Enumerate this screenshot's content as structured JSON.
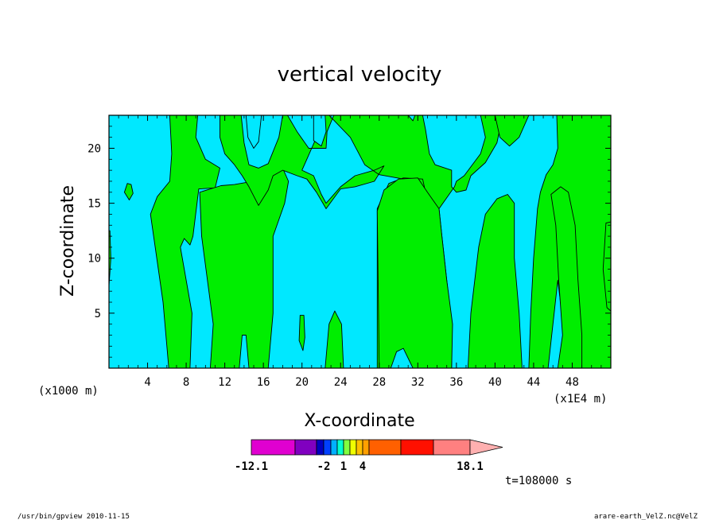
{
  "chart_data": {
    "type": "heatmap",
    "title": "vertical velocity",
    "xlabel": "X-coordinate",
    "ylabel": "Z-coordinate",
    "x_unit_left": "(x1000 m)",
    "x_unit_right": "(x1E4 m)",
    "xlim": [
      0,
      52
    ],
    "ylim": [
      0,
      23
    ],
    "xticks": [
      4,
      8,
      12,
      16,
      20,
      24,
      28,
      32,
      36,
      40,
      44,
      48
    ],
    "yticks": [
      5,
      10,
      15,
      20
    ],
    "colors": {
      "negative": "#00e8ff",
      "positive": "#00ee00",
      "contour": "#000000"
    },
    "positive_regions": [
      {
        "id": "band-a",
        "points": [
          [
            6.2,
            0
          ],
          [
            5.6,
            6
          ],
          [
            4.3,
            14
          ],
          [
            5,
            15.6
          ],
          [
            6.3,
            17
          ],
          [
            6.5,
            19.5
          ],
          [
            6.3,
            23
          ],
          [
            9.2,
            23
          ],
          [
            9,
            21
          ],
          [
            10,
            19
          ],
          [
            11.5,
            18.2
          ],
          [
            11,
            16.4
          ],
          [
            9.3,
            16.3
          ],
          [
            8.7,
            12
          ],
          [
            8.4,
            11.2
          ],
          [
            7.8,
            11.8
          ],
          [
            7.4,
            11
          ],
          [
            8.6,
            5
          ],
          [
            8.4,
            0
          ]
        ]
      },
      {
        "id": "band-b",
        "points": [
          [
            10.5,
            0
          ],
          [
            10.8,
            4
          ],
          [
            10.2,
            8
          ],
          [
            9.6,
            12
          ],
          [
            9.4,
            16
          ],
          [
            11.6,
            16.6
          ],
          [
            13,
            16.7
          ],
          [
            14.3,
            16.9
          ],
          [
            15.2,
            15.4
          ],
          [
            16.2,
            16.5
          ],
          [
            16.5,
            17.5
          ],
          [
            18,
            18.2
          ],
          [
            18.6,
            17
          ],
          [
            18.2,
            15
          ],
          [
            17,
            12
          ],
          [
            17,
            5
          ],
          [
            16.5,
            0
          ],
          [
            14.5,
            0
          ],
          [
            14.2,
            3
          ],
          [
            13.8,
            3
          ],
          [
            13.5,
            0
          ]
        ]
      },
      {
        "id": "band-c",
        "points": [
          [
            11.5,
            23
          ],
          [
            13.7,
            23
          ],
          [
            14,
            20.5
          ],
          [
            14.5,
            18.5
          ],
          [
            15.5,
            18.2
          ],
          [
            16.5,
            18.6
          ],
          [
            17.6,
            21
          ],
          [
            18,
            23
          ],
          [
            18.5,
            23
          ],
          [
            19.5,
            21.5
          ],
          [
            20.7,
            20
          ],
          [
            22.5,
            20
          ],
          [
            22.6,
            21.5
          ],
          [
            23.3,
            23
          ],
          [
            31,
            23
          ],
          [
            31.5,
            22.5
          ],
          [
            31.7,
            23
          ],
          [
            32.5,
            23
          ],
          [
            32.8,
            21.7
          ],
          [
            33.2,
            19.5
          ],
          [
            33.8,
            18.5
          ],
          [
            35.5,
            18
          ],
          [
            35.5,
            16.5
          ],
          [
            36,
            16
          ],
          [
            37,
            16.2
          ],
          [
            37.5,
            17.5
          ],
          [
            39,
            18.7
          ],
          [
            40.2,
            20.5
          ],
          [
            40.8,
            23
          ],
          [
            38.5,
            23
          ],
          [
            39,
            21
          ],
          [
            38.5,
            19.5
          ],
          [
            36.8,
            17.5
          ],
          [
            36,
            17
          ],
          [
            35.8,
            16.5
          ],
          [
            35,
            15.5
          ],
          [
            34.2,
            14.5
          ],
          [
            34.5,
            12
          ],
          [
            35,
            8
          ],
          [
            35.5,
            4
          ],
          [
            35.5,
            0
          ],
          [
            33.5,
            0
          ],
          [
            31.5,
            0.5
          ],
          [
            30.5,
            1.8
          ],
          [
            29.5,
            1.5
          ],
          [
            28.8,
            0
          ],
          [
            27.8,
            0
          ],
          [
            27.8,
            14.5
          ],
          [
            29,
            16.8
          ],
          [
            30.5,
            17.3
          ],
          [
            32.5,
            17.2
          ],
          [
            32.8,
            16
          ],
          [
            32.5,
            16
          ],
          [
            30.5,
            17.2
          ],
          [
            28,
            17.6
          ],
          [
            26.5,
            18.5
          ],
          [
            25,
            21
          ],
          [
            22.8,
            23
          ],
          [
            22,
            23
          ],
          [
            21.5,
            21
          ],
          [
            20.5,
            19
          ],
          [
            20,
            18
          ],
          [
            21.2,
            17.5
          ],
          [
            22,
            15.8
          ],
          [
            22.5,
            15
          ],
          [
            24,
            16.5
          ],
          [
            25.5,
            17.5
          ],
          [
            27.5,
            18
          ],
          [
            28.5,
            18.4
          ],
          [
            27.5,
            17
          ],
          [
            25.5,
            16.5
          ],
          [
            24,
            16.3
          ],
          [
            22.5,
            14.5
          ],
          [
            21.5,
            16
          ],
          [
            20.5,
            17.2
          ],
          [
            19.5,
            17.5
          ],
          [
            18,
            18
          ],
          [
            17,
            17.5
          ],
          [
            16.5,
            16.2
          ],
          [
            15.5,
            14.8
          ],
          [
            14.5,
            16.5
          ],
          [
            13.8,
            17.5
          ],
          [
            13,
            18.5
          ],
          [
            12,
            19.5
          ],
          [
            11.5,
            21
          ]
        ]
      },
      {
        "id": "band-d",
        "points": [
          [
            28,
            0
          ],
          [
            27.8,
            14.3
          ],
          [
            28.5,
            16.2
          ],
          [
            30,
            17.2
          ],
          [
            32,
            17.3
          ],
          [
            33,
            16
          ],
          [
            34.2,
            14.5
          ],
          [
            34.5,
            12
          ],
          [
            35,
            8
          ],
          [
            35.6,
            4
          ],
          [
            35.5,
            0
          ],
          [
            33.6,
            0
          ],
          [
            31.5,
            0
          ],
          [
            30.5,
            1.8
          ],
          [
            29.8,
            1.5
          ],
          [
            29.2,
            0
          ]
        ]
      },
      {
        "id": "band-e",
        "points": [
          [
            37.2,
            0
          ],
          [
            37.5,
            5
          ],
          [
            38.3,
            11
          ],
          [
            39,
            14
          ],
          [
            40.2,
            15.4
          ],
          [
            41.3,
            15.8
          ],
          [
            42,
            15
          ],
          [
            42,
            10
          ],
          [
            42.5,
            5
          ],
          [
            42.8,
            0
          ]
        ]
      },
      {
        "id": "band-f",
        "points": [
          [
            43.5,
            0
          ],
          [
            43.7,
            5
          ],
          [
            44,
            10
          ],
          [
            44.4,
            14.5
          ],
          [
            44.7,
            16
          ],
          [
            45.3,
            17.6
          ],
          [
            46,
            18.5
          ],
          [
            46.5,
            20
          ],
          [
            46.4,
            23
          ],
          [
            52,
            23
          ],
          [
            52,
            0
          ],
          [
            48.5,
            0
          ],
          [
            47.2,
            3
          ],
          [
            46.5,
            8
          ],
          [
            45.5,
            0
          ]
        ]
      },
      {
        "id": "band-f-cut",
        "points": [
          [
            46.5,
            0
          ],
          [
            47,
            3
          ],
          [
            46.6,
            8
          ],
          [
            46.3,
            13
          ],
          [
            45.8,
            15.8
          ],
          [
            46.8,
            16.5
          ],
          [
            47.6,
            16
          ],
          [
            48.3,
            13
          ],
          [
            48.6,
            8
          ],
          [
            49,
            3
          ],
          [
            49,
            0
          ]
        ]
      },
      {
        "id": "band-g",
        "points": [
          [
            40,
            23
          ],
          [
            40.5,
            21
          ],
          [
            41.5,
            20.2
          ],
          [
            42.5,
            21
          ],
          [
            43.5,
            23
          ]
        ]
      },
      {
        "id": "blob-1",
        "points": [
          [
            1.9,
            16.8
          ],
          [
            1.6,
            16
          ],
          [
            2.1,
            15.3
          ],
          [
            2.5,
            15.9
          ],
          [
            2.3,
            16.7
          ]
        ]
      },
      {
        "id": "blob-2",
        "points": [
          [
            19.8,
            4.8
          ],
          [
            19.7,
            2.5
          ],
          [
            20.1,
            1.6
          ],
          [
            20.3,
            2.8
          ],
          [
            20.2,
            4.8
          ]
        ]
      },
      {
        "id": "blob-3",
        "points": [
          [
            22.4,
            0
          ],
          [
            22.8,
            4
          ],
          [
            23.4,
            5.2
          ],
          [
            24.1,
            4
          ],
          [
            24.3,
            0
          ]
        ]
      },
      {
        "id": "blob-4",
        "points": [
          [
            51.6,
            5.5
          ],
          [
            51.2,
            9
          ],
          [
            51.5,
            13.2
          ],
          [
            52,
            13.3
          ],
          [
            52,
            5.2
          ]
        ]
      },
      {
        "id": "blob-5",
        "points": [
          [
            0,
            7.5
          ],
          [
            0.2,
            10
          ],
          [
            0.1,
            12.5
          ],
          [
            0,
            12.5
          ]
        ]
      }
    ],
    "negative_regions": [
      {
        "id": "hole-1",
        "points": [
          [
            14.2,
            23
          ],
          [
            14.4,
            21
          ],
          [
            15,
            20
          ],
          [
            15.5,
            20.6
          ],
          [
            15.8,
            23
          ]
        ]
      },
      {
        "id": "hole-2",
        "points": [
          [
            21.2,
            23
          ],
          [
            21.2,
            20.7
          ],
          [
            22,
            20.2
          ],
          [
            22.5,
            21.5
          ],
          [
            22.4,
            23
          ]
        ]
      }
    ],
    "colorbar": {
      "colors": [
        "#e000d0",
        "#8000c0",
        "#0000c0",
        "#0040ff",
        "#00b0ff",
        "#00ffd0",
        "#80ff40",
        "#f0ff00",
        "#ffc000",
        "#ffa000",
        "#ff6000",
        "#ff1000",
        "#ff8080",
        "#ffb0b0"
      ],
      "labels": [
        "-12.1",
        "-2",
        "1",
        "4",
        "18.1"
      ]
    },
    "time_label": "t=108000 s"
  },
  "footer": {
    "left": "/usr/bin/gpview   2010-11-15",
    "right": "arare-earth_VelZ.nc@VelZ"
  }
}
